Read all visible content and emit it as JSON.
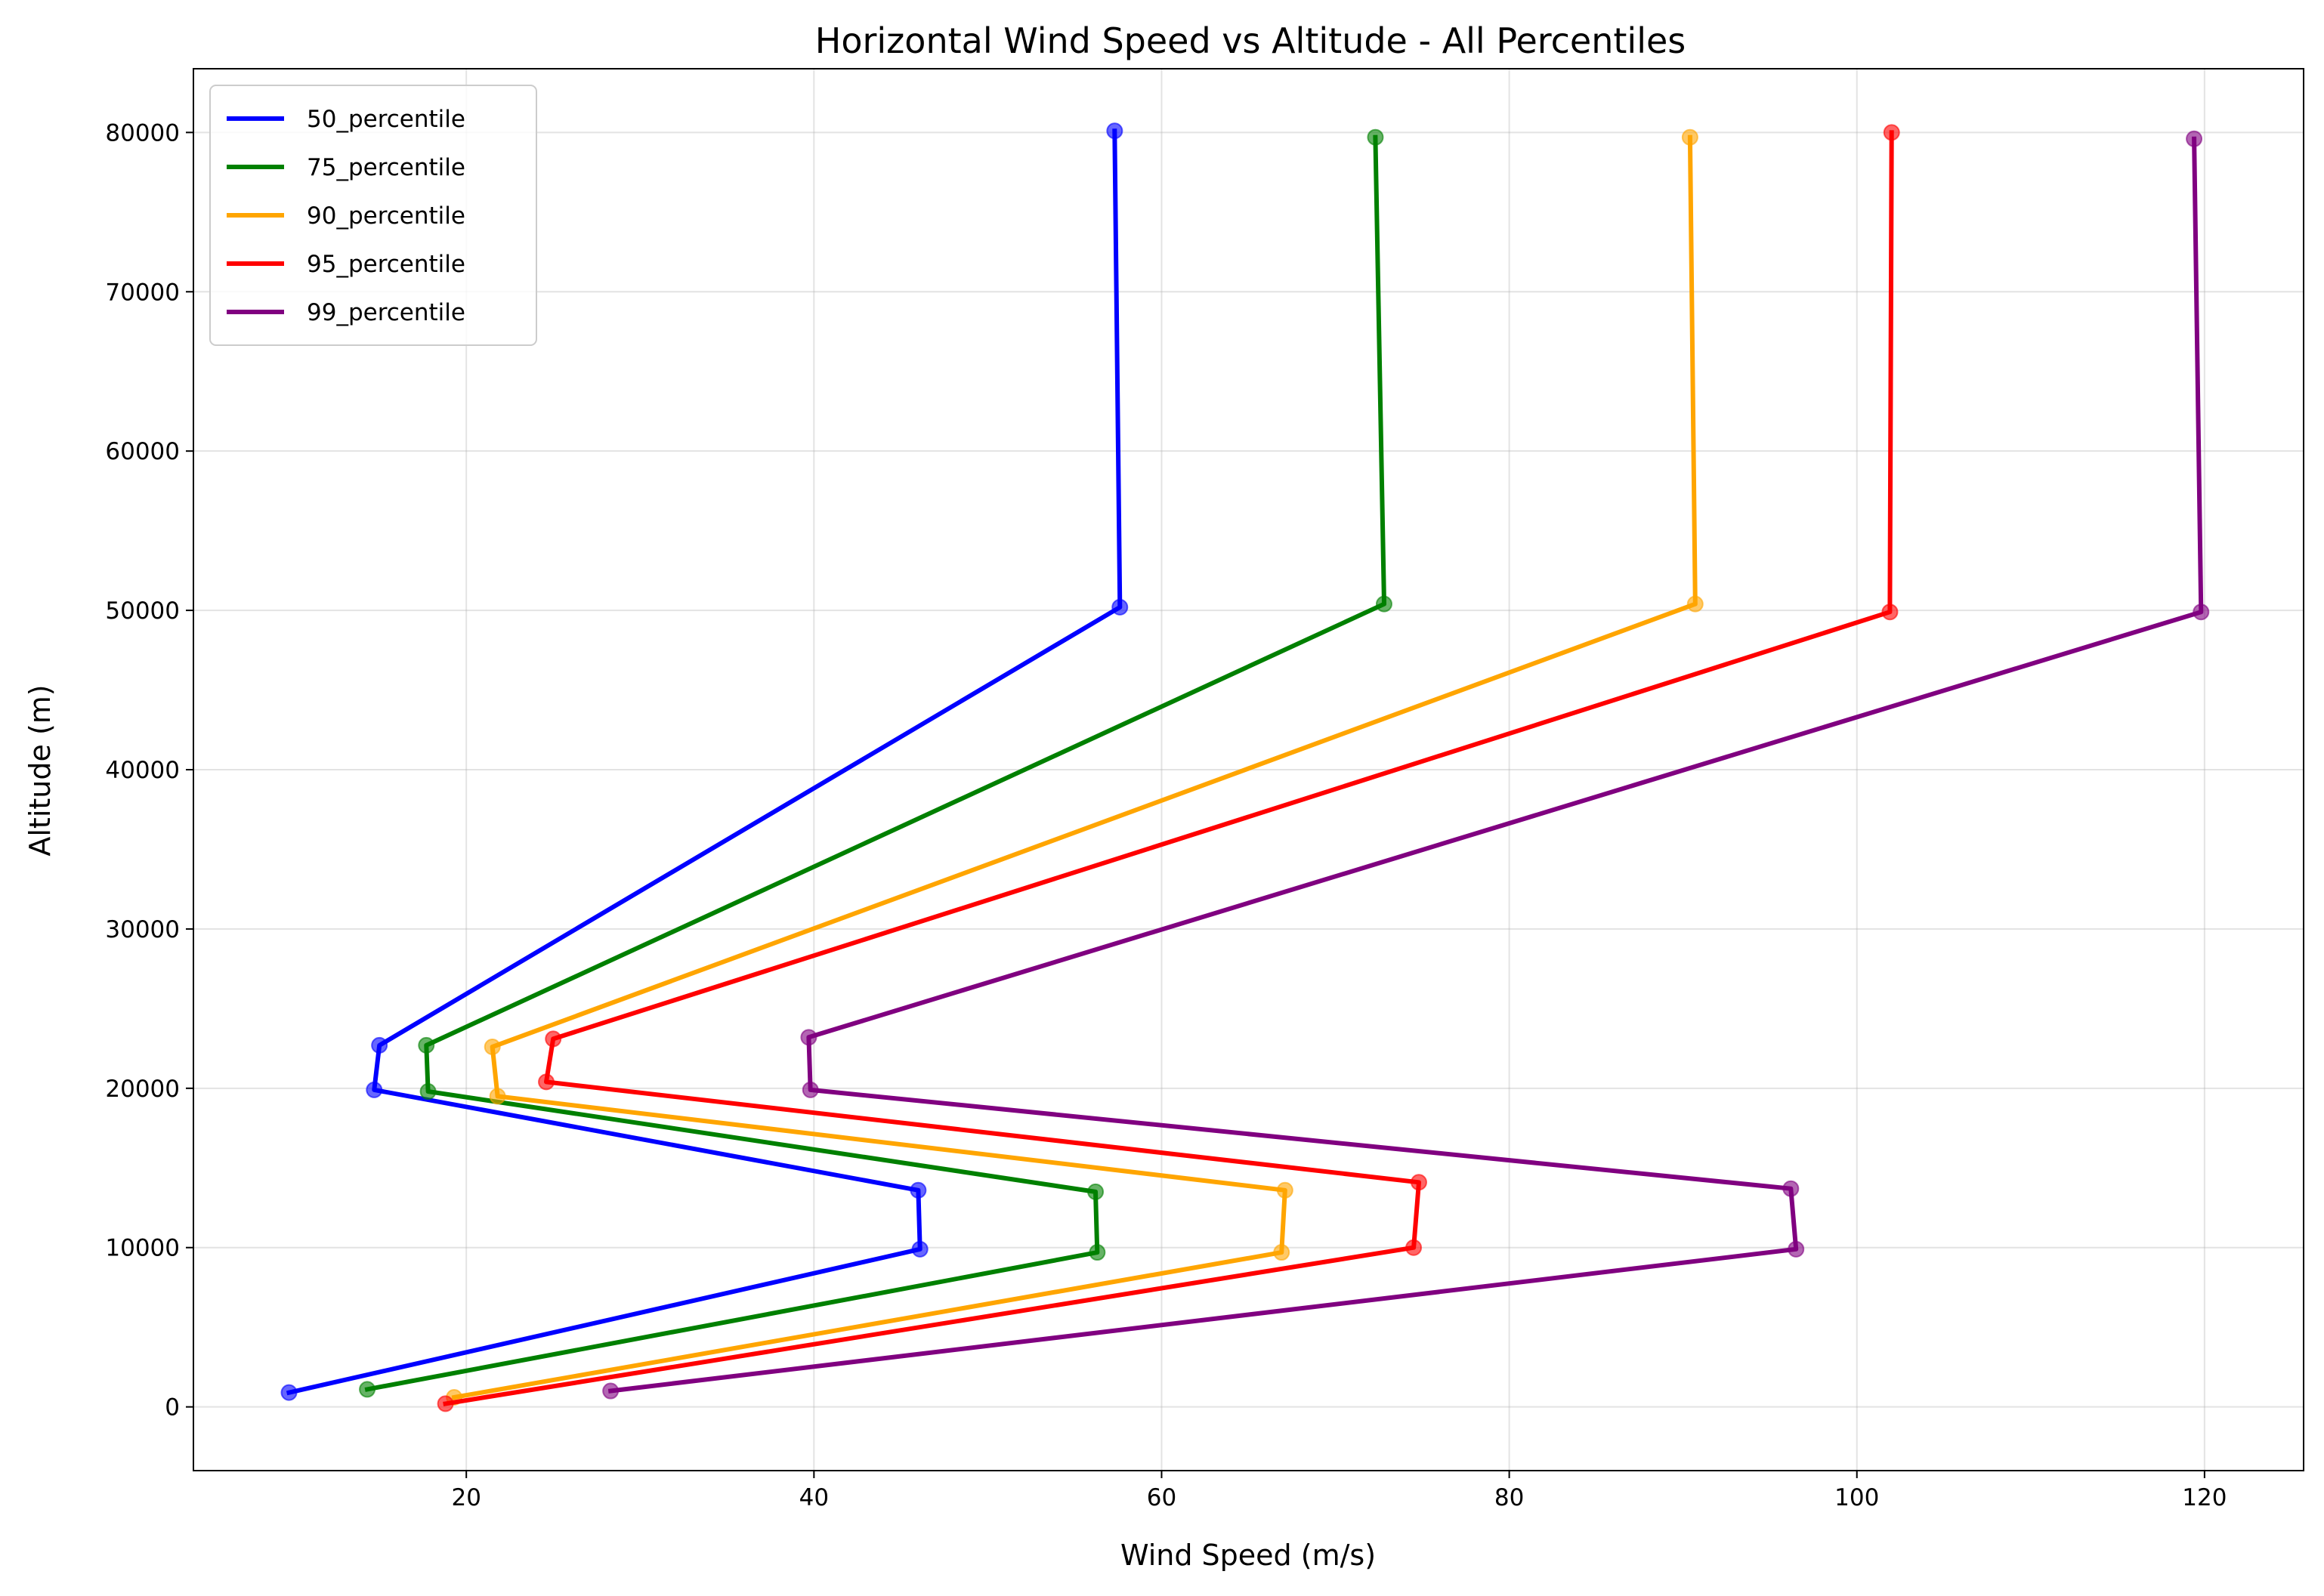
{
  "chart_data": {
    "type": "line",
    "title": "Horizontal Wind Speed vs Altitude - All Percentiles",
    "xlabel": "Wind Speed (m/s)",
    "ylabel": "Altitude (m)",
    "xlim": [
      4.3,
      125.7
    ],
    "ylim": [
      -4000,
      84000
    ],
    "xticks": [
      "20",
      "40",
      "60",
      "80",
      "100",
      "120"
    ],
    "yticks": [
      "0",
      "10000",
      "20000",
      "30000",
      "40000",
      "50000",
      "60000",
      "70000",
      "80000"
    ],
    "grid": true,
    "legend_position": "top-left",
    "series": [
      {
        "name": "50_percentile",
        "color": "#0000ff",
        "points": [
          [
            9.8,
            900
          ],
          [
            46.1,
            9900
          ],
          [
            46.0,
            13600
          ],
          [
            14.7,
            19900
          ],
          [
            15.0,
            22700
          ],
          [
            57.6,
            50200
          ],
          [
            57.3,
            80100
          ]
        ]
      },
      {
        "name": "75_percentile",
        "color": "#008000",
        "points": [
          [
            14.3,
            1100
          ],
          [
            56.3,
            9700
          ],
          [
            56.2,
            13500
          ],
          [
            17.8,
            19800
          ],
          [
            17.7,
            22700
          ],
          [
            72.8,
            50400
          ],
          [
            72.3,
            79700
          ]
        ]
      },
      {
        "name": "90_percentile",
        "color": "#ffa500",
        "points": [
          [
            19.3,
            600
          ],
          [
            66.9,
            9700
          ],
          [
            67.1,
            13600
          ],
          [
            21.8,
            19500
          ],
          [
            21.5,
            22600
          ],
          [
            90.7,
            50400
          ],
          [
            90.4,
            79700
          ]
        ]
      },
      {
        "name": "95_percentile",
        "color": "#ff0000",
        "points": [
          [
            18.8,
            200
          ],
          [
            74.5,
            10000
          ],
          [
            74.8,
            14100
          ],
          [
            24.6,
            20400
          ],
          [
            25.0,
            23100
          ],
          [
            101.9,
            49900
          ],
          [
            102.0,
            80000
          ]
        ]
      },
      {
        "name": "99_percentile",
        "color": "#800080",
        "points": [
          [
            28.3,
            1000
          ],
          [
            96.5,
            9900
          ],
          [
            96.2,
            13700
          ],
          [
            39.8,
            19900
          ],
          [
            39.7,
            23200
          ],
          [
            119.8,
            49900
          ],
          [
            119.4,
            79600
          ]
        ]
      }
    ]
  }
}
